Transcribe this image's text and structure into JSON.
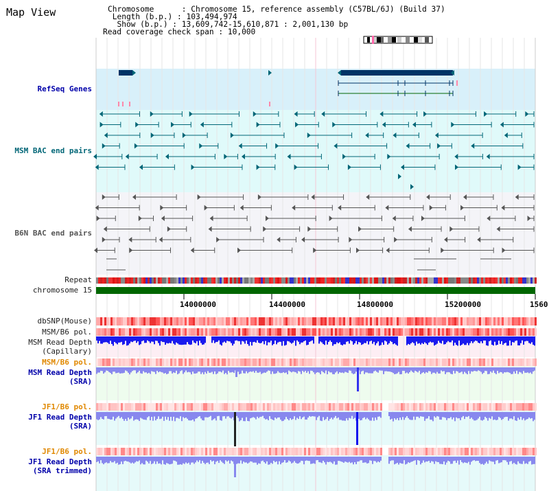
{
  "header": {
    "title": "Map View",
    "chromosome_line": "Chromosome      : Chromosome 15, reference assembly (C57BL/6J) (Build 37)",
    "length_line": " Length (b.p.) : 103,494,974",
    "show_line": "  Show (b.p.) : 13,609,742-15,610,871 : 2,001,130 bp",
    "coverage_line": "Read coverage check span : 10,000"
  },
  "tracks": {
    "refseq": "RefSeq Genes",
    "msm_bac": "MSM BAC end pairs",
    "b6n_bac": "B6N BAC end pairs",
    "repeat": "Repeat",
    "chromosome": "chromosome 15",
    "dbsnp": "dbSNP(Mouse)",
    "msm_b6_pol": "MSM/B6 pol.",
    "msm_depth_cap_1": "MSM Read Depth",
    "msm_depth_cap_2": "(Capillary)",
    "msm_b6_pol_2": "MSM/B6 pol.",
    "msm_depth_sra_1": "MSM Read Depth",
    "msm_depth_sra_2": "(SRA)",
    "jf1_b6_pol": "JF1/B6 pol.",
    "jf1_depth_sra_1": "JF1 Read Depth",
    "jf1_depth_sra_2": "(SRA)",
    "jf1_b6_pol_2": "JF1/B6 pol.",
    "jf1_depth_trim_1": "JF1 Read Depth",
    "jf1_depth_trim_2": "(SRA trimmed)"
  },
  "axis": {
    "ticks": [
      "14000000",
      "14400000",
      "14800000",
      "15200000",
      "1560"
    ]
  },
  "colors": {
    "refseq_bg": "#d8f0fa",
    "msm_bg": "#e0fafa",
    "b6n_bg": "#f4f4f8",
    "chromosome": "#006600",
    "gene": "#003366",
    "msm_feature": "#006677",
    "b6n_feature": "#555555",
    "depth_capillary": "#1a1aee",
    "depth_sra": "#8888ee"
  }
}
